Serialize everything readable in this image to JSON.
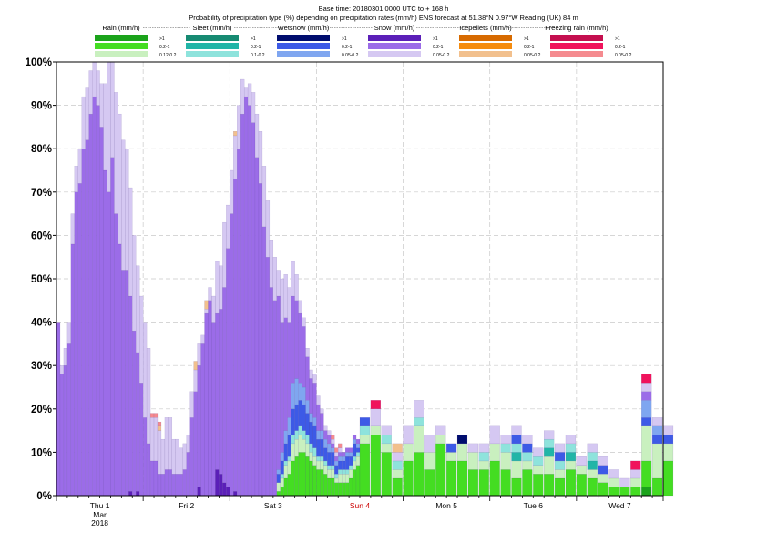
{
  "chart_data": {
    "type": "bar",
    "stacked": true,
    "title": "Base time: 20180301 0000 UTC to + 168 h",
    "subtitle": "Probability of precipitation type (%) depending on precipitation rates (mm/h) ENS forecast at 51.38°N  0.97°W Reading (UK) 84 m",
    "ylim": [
      0,
      100
    ],
    "ylabel": "",
    "xlabel": "",
    "grid": true,
    "y_ticks": [
      "0%",
      "10%",
      "20%",
      "30%",
      "40%",
      "50%",
      "60%",
      "70%",
      "80%",
      "90%",
      "100%"
    ],
    "x_range_hours": [
      0,
      168
    ],
    "x_ticks": [
      {
        "label": "Thu 1",
        "sub1": "Mar",
        "sub2": "2018",
        "hour": 12,
        "color": "#000000"
      },
      {
        "label": "Fri 2",
        "hour": 36,
        "color": "#000000"
      },
      {
        "label": "Sat 3",
        "hour": 60,
        "color": "#000000"
      },
      {
        "label": "Sun 4",
        "hour": 84,
        "color": "#cc0000"
      },
      {
        "label": "Mon 5",
        "hour": 108,
        "color": "#000000"
      },
      {
        "label": "Tue 6",
        "hour": 132,
        "color": "#000000"
      },
      {
        "label": "Wed 7",
        "hour": 156,
        "color": "#000000"
      }
    ],
    "legend_placement": "top",
    "legend": [
      {
        "group": "Rain (mm/h)",
        "entries": [
          {
            "label": ">1",
            "color": "#1ba31b"
          },
          {
            "label": "0.2-1",
            "color": "#44dd22"
          },
          {
            "label": "0.12-0.2",
            "color": "#c9f0bf"
          }
        ]
      },
      {
        "group": "Sleet (mm/h)",
        "entries": [
          {
            "label": ">1",
            "color": "#168a72"
          },
          {
            "label": "0.2-1",
            "color": "#21b5a7"
          },
          {
            "label": "0.1-0.2",
            "color": "#8ee3dc"
          }
        ]
      },
      {
        "group": "Wetsnow (mm/h)",
        "entries": [
          {
            "label": ">1",
            "color": "#000d6e"
          },
          {
            "label": "0.2-1",
            "color": "#3d5ae6"
          },
          {
            "label": "0.05-0.2",
            "color": "#7fa6f0"
          }
        ]
      },
      {
        "group": "Snow (mm/h)",
        "entries": [
          {
            "label": ">1",
            "color": "#5b1fb8"
          },
          {
            "label": "0.2-1",
            "color": "#9b6ce8"
          },
          {
            "label": "0.05-0.2",
            "color": "#d5c8f2"
          }
        ]
      },
      {
        "group": "Icepellets (mm/h)",
        "entries": [
          {
            "label": ">1",
            "color": "#d76a00"
          },
          {
            "label": "0.2-1",
            "color": "#f58c0f"
          },
          {
            "label": "0.05-0.2",
            "color": "#f2c08d"
          }
        ]
      },
      {
        "group": "Freezing rain (mm/h)",
        "entries": [
          {
            "label": ">1",
            "color": "#c40f4f"
          },
          {
            "label": "0.2-1",
            "color": "#f0135c"
          },
          {
            "label": "0.05-0.2",
            "color": "#f58a8f"
          }
        ]
      }
    ],
    "series_order": [
      "rain_heavy",
      "rain_mod",
      "rain_light",
      "sleet_heavy",
      "sleet_mod",
      "sleet_light",
      "wetsnow_heavy",
      "wetsnow_mod",
      "wetsnow_light",
      "snow_heavy",
      "snow_mod",
      "snow_light",
      "ice_heavy",
      "ice_mod",
      "ice_light",
      "fz_heavy",
      "fz_mod",
      "fz_light"
    ],
    "hourly_steps": {
      "start_hour": 0,
      "step_hours": 1,
      "snow_mod": [
        40,
        28,
        30,
        35,
        58,
        70,
        72,
        80,
        82,
        88,
        92,
        90,
        85,
        75,
        70,
        78,
        65,
        58,
        52,
        52,
        45,
        38,
        32,
        26,
        18,
        12,
        8,
        8,
        5,
        5,
        6,
        6,
        5,
        5,
        5,
        6,
        10,
        18,
        24,
        28,
        35,
        42,
        45,
        40,
        36,
        38,
        45,
        55,
        65,
        72,
        80,
        88,
        92,
        90,
        86,
        78,
        72,
        62,
        55,
        48,
        45,
        40,
        30,
        26,
        22,
        20,
        18,
        16,
        14,
        10,
        8,
        8,
        6,
        4,
        2,
        2,
        1,
        1,
        1,
        1,
        1,
        1,
        1,
        1
      ],
      "snow_light": [
        0,
        2,
        4,
        5,
        7,
        6,
        8,
        12,
        12,
        10,
        8,
        8,
        10,
        20,
        30,
        22,
        28,
        30,
        30,
        28,
        25,
        22,
        20,
        20,
        22,
        22,
        10,
        10,
        10,
        8,
        12,
        12,
        8,
        8,
        6,
        6,
        4,
        6,
        5,
        5,
        2,
        1,
        3,
        6,
        12,
        10,
        15,
        10,
        10,
        10,
        10,
        8,
        2,
        5,
        7,
        10,
        12,
        14,
        13,
        11,
        10,
        6,
        10,
        10,
        8,
        8,
        6,
        3,
        2,
        2,
        2,
        2,
        2,
        1,
        1,
        1,
        1,
        1,
        1,
        0,
        0,
        0,
        0,
        0
      ],
      "snow_heavy": [
        0,
        0,
        0,
        0,
        0,
        0,
        0,
        0,
        0,
        0,
        0,
        0,
        0,
        0,
        0,
        0,
        0,
        0,
        0,
        0,
        1,
        0,
        1,
        0,
        0,
        0,
        0,
        0,
        0,
        0,
        0,
        0,
        0,
        0,
        0,
        0,
        0,
        0,
        0,
        2,
        0,
        0,
        0,
        0,
        6,
        5,
        3,
        2,
        0,
        1,
        0,
        0,
        0,
        0,
        0,
        0,
        0,
        0,
        0,
        0,
        0,
        0,
        0,
        0,
        0,
        0,
        0,
        0,
        0,
        0,
        0,
        0,
        0,
        0,
        0,
        0,
        0,
        0,
        0,
        0,
        0,
        0,
        0,
        0
      ],
      "wetsnow_mod": [
        0,
        0,
        0,
        0,
        0,
        0,
        0,
        0,
        0,
        0,
        0,
        0,
        0,
        0,
        0,
        0,
        0,
        0,
        0,
        0,
        0,
        0,
        0,
        0,
        0,
        0,
        0,
        0,
        0,
        0,
        0,
        0,
        0,
        0,
        0,
        0,
        0,
        0,
        0,
        0,
        0,
        0,
        0,
        0,
        0,
        0,
        0,
        0,
        0,
        0,
        0,
        0,
        0,
        0,
        0,
        0,
        0,
        0,
        0,
        0,
        0,
        2,
        3,
        4,
        5,
        6,
        6,
        6,
        6,
        5,
        5,
        5,
        4,
        4,
        3,
        3,
        3,
        2,
        2,
        2,
        3,
        2,
        3,
        1
      ],
      "wetsnow_light": [
        0,
        0,
        0,
        0,
        0,
        0,
        0,
        0,
        0,
        0,
        0,
        0,
        0,
        0,
        0,
        0,
        0,
        0,
        0,
        0,
        0,
        0,
        0,
        0,
        0,
        0,
        0,
        0,
        0,
        0,
        0,
        0,
        0,
        0,
        0,
        0,
        0,
        0,
        0,
        0,
        0,
        0,
        0,
        0,
        0,
        0,
        0,
        0,
        0,
        0,
        0,
        0,
        0,
        0,
        0,
        0,
        0,
        0,
        0,
        0,
        0,
        1,
        2,
        3,
        4,
        6,
        6,
        4,
        4,
        3,
        2,
        2,
        2,
        2,
        2,
        2,
        1,
        1,
        1,
        1,
        1,
        1,
        1,
        1
      ],
      "sleet_light": [
        0,
        0,
        0,
        0,
        0,
        0,
        0,
        0,
        0,
        0,
        0,
        0,
        0,
        0,
        0,
        0,
        0,
        0,
        0,
        0,
        0,
        0,
        0,
        0,
        0,
        0,
        0,
        0,
        0,
        0,
        0,
        0,
        0,
        0,
        0,
        0,
        0,
        0,
        0,
        0,
        0,
        0,
        0,
        0,
        0,
        0,
        0,
        0,
        0,
        0,
        0,
        0,
        0,
        0,
        0,
        0,
        0,
        0,
        0,
        0,
        0,
        0,
        1,
        1,
        1,
        2,
        2,
        2,
        2,
        2,
        2,
        2,
        1,
        1,
        1,
        1,
        1,
        1,
        1,
        1,
        1,
        1,
        1,
        1
      ],
      "rain_mod": [
        0,
        0,
        0,
        0,
        0,
        0,
        0,
        0,
        0,
        0,
        0,
        0,
        0,
        0,
        0,
        0,
        0,
        0,
        0,
        0,
        0,
        0,
        0,
        0,
        0,
        0,
        0,
        0,
        0,
        0,
        0,
        0,
        0,
        0,
        0,
        0,
        0,
        0,
        0,
        0,
        0,
        0,
        0,
        0,
        0,
        0,
        0,
        0,
        0,
        0,
        0,
        0,
        0,
        0,
        0,
        0,
        0,
        0,
        0,
        0,
        0,
        1,
        2,
        4,
        5,
        8,
        9,
        10,
        10,
        9,
        8,
        7,
        6,
        6,
        5,
        4,
        4,
        3,
        3,
        3,
        3,
        4,
        6,
        7
      ],
      "rain_light": [
        0,
        0,
        0,
        0,
        0,
        0,
        0,
        0,
        0,
        0,
        0,
        0,
        0,
        0,
        0,
        0,
        0,
        0,
        0,
        0,
        0,
        0,
        0,
        0,
        0,
        0,
        0,
        0,
        0,
        0,
        0,
        0,
        0,
        0,
        0,
        0,
        0,
        0,
        0,
        0,
        0,
        0,
        0,
        0,
        0,
        0,
        0,
        0,
        0,
        0,
        0,
        0,
        0,
        0,
        0,
        0,
        0,
        0,
        0,
        0,
        0,
        2,
        2,
        3,
        3,
        4,
        4,
        4,
        3,
        3,
        2,
        2,
        2,
        2,
        2,
        2,
        2,
        1,
        2,
        2,
        2,
        2,
        2,
        2
      ],
      "ice_light": [
        0,
        0,
        0,
        0,
        0,
        0,
        0,
        0,
        0,
        0,
        0,
        0,
        0,
        0,
        0,
        0,
        0,
        0,
        0,
        0,
        0,
        0,
        0,
        0,
        0,
        0,
        0,
        0,
        1,
        0,
        0,
        0,
        0,
        0,
        0,
        0,
        0,
        0,
        2,
        0,
        0,
        2,
        0,
        0,
        0,
        0,
        0,
        0,
        0,
        1,
        0,
        0,
        0,
        0,
        0,
        0,
        0,
        0,
        0,
        0,
        0,
        0,
        0,
        0,
        0,
        0,
        0,
        0,
        0,
        0,
        0,
        0,
        0,
        0,
        0,
        0,
        0,
        0,
        0,
        0,
        0,
        0,
        0,
        0
      ],
      "fz_light": [
        0,
        0,
        0,
        0,
        0,
        0,
        0,
        0,
        0,
        0,
        0,
        0,
        0,
        0,
        0,
        0,
        0,
        0,
        0,
        0,
        0,
        0,
        0,
        0,
        0,
        0,
        1,
        1,
        1,
        0,
        0,
        0,
        0,
        0,
        0,
        0,
        0,
        0,
        0,
        0,
        0,
        0,
        0,
        0,
        0,
        0,
        0,
        0,
        0,
        0,
        0,
        0,
        0,
        0,
        0,
        0,
        0,
        0,
        0,
        0,
        0,
        0,
        0,
        0,
        0,
        0,
        0,
        0,
        0,
        0,
        0,
        0,
        0,
        0,
        0,
        0,
        1,
        1,
        1,
        0,
        0,
        0,
        0,
        0
      ]
    },
    "three_hourly_steps": {
      "start_hour": 84,
      "step_hours": 3,
      "rain_heavy": [
        0,
        0,
        0,
        0,
        0,
        0,
        0,
        0,
        0,
        0,
        0,
        0,
        0,
        0,
        0,
        0,
        0,
        0,
        0,
        0,
        0,
        0,
        0,
        0,
        0,
        0,
        2,
        0,
        0
      ],
      "rain_mod": [
        12,
        14,
        10,
        4,
        8,
        10,
        6,
        12,
        8,
        8,
        6,
        6,
        8,
        6,
        4,
        6,
        5,
        5,
        4,
        6,
        5,
        4,
        3,
        2,
        2,
        2,
        6,
        4,
        8
      ],
      "rain_light": [
        2,
        2,
        2,
        2,
        4,
        6,
        4,
        2,
        2,
        4,
        4,
        2,
        4,
        4,
        4,
        2,
        2,
        4,
        2,
        2,
        2,
        2,
        2,
        2,
        0,
        2,
        8,
        8,
        4
      ],
      "sleet_mod": [
        0,
        0,
        0,
        0,
        0,
        0,
        0,
        0,
        0,
        0,
        0,
        0,
        0,
        0,
        2,
        0,
        0,
        2,
        0,
        2,
        0,
        2,
        0,
        0,
        0,
        0,
        0,
        0,
        0
      ],
      "sleet_light": [
        2,
        0,
        2,
        2,
        0,
        2,
        0,
        0,
        0,
        0,
        0,
        2,
        0,
        2,
        2,
        2,
        2,
        2,
        2,
        2,
        0,
        2,
        0,
        0,
        0,
        0,
        0,
        0,
        0
      ],
      "wetsnow_mod": [
        2,
        0,
        0,
        0,
        0,
        0,
        0,
        0,
        2,
        0,
        0,
        0,
        0,
        0,
        2,
        2,
        0,
        0,
        2,
        0,
        0,
        0,
        2,
        0,
        0,
        0,
        2,
        2,
        2
      ],
      "wetsnow_light": [
        0,
        0,
        0,
        0,
        0,
        0,
        0,
        0,
        0,
        0,
        0,
        0,
        0,
        0,
        0,
        0,
        0,
        0,
        0,
        0,
        0,
        0,
        0,
        0,
        0,
        0,
        4,
        2,
        0
      ],
      "snow_mod": [
        0,
        0,
        0,
        0,
        0,
        0,
        0,
        0,
        0,
        0,
        0,
        0,
        0,
        0,
        0,
        0,
        0,
        0,
        0,
        0,
        0,
        0,
        0,
        0,
        0,
        0,
        2,
        0,
        0
      ],
      "snow_light": [
        0,
        4,
        2,
        2,
        4,
        4,
        4,
        2,
        0,
        0,
        2,
        2,
        4,
        2,
        2,
        2,
        2,
        2,
        2,
        2,
        2,
        2,
        2,
        2,
        2,
        2,
        2,
        2,
        2
      ],
      "ice_light": [
        0,
        0,
        0,
        2,
        0,
        0,
        0,
        0,
        0,
        0,
        0,
        0,
        0,
        0,
        0,
        0,
        0,
        0,
        0,
        0,
        0,
        0,
        0,
        0,
        0,
        0,
        0,
        0,
        0
      ],
      "fz_mod": [
        0,
        2,
        0,
        0,
        0,
        0,
        0,
        0,
        0,
        0,
        0,
        0,
        0,
        0,
        0,
        0,
        0,
        0,
        0,
        0,
        0,
        0,
        0,
        0,
        0,
        2,
        2,
        0,
        0
      ],
      "wetsnow_heavy": [
        0,
        0,
        0,
        0,
        0,
        0,
        0,
        0,
        0,
        2,
        0,
        0,
        0,
        0,
        0,
        0,
        0,
        0,
        0,
        0,
        0,
        0,
        0,
        0,
        0,
        0,
        0,
        0,
        0
      ],
      "snow_heavy_extra": [
        0,
        0,
        0,
        0,
        0,
        0,
        0,
        0,
        0,
        0,
        0,
        0,
        0,
        0,
        0,
        0,
        0,
        0,
        0,
        0,
        0,
        0,
        0,
        0,
        0,
        0,
        0,
        0,
        0
      ]
    }
  }
}
